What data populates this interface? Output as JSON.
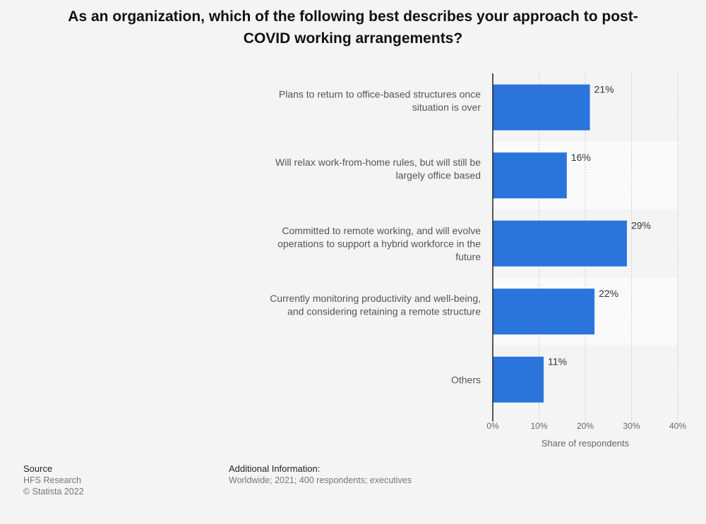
{
  "chart_data": {
    "type": "bar",
    "orientation": "horizontal",
    "title": "As an organization, which of the following best describes your approach to post-COVID working arrangements?",
    "categories": [
      "Plans to return to office-based structures once situation is over",
      "Will relax work-from-home rules, but will still be largely office based",
      "Committed to remote working, and will evolve operations to support a hybrid workforce in the future",
      "Currently monitoring productivity and well-being, and considering retaining a remote structure",
      "Others"
    ],
    "values": [
      21,
      16,
      29,
      22,
      11
    ],
    "value_labels": [
      "21%",
      "16%",
      "29%",
      "22%",
      "11%"
    ],
    "xlabel": "Share of respondents",
    "xlim": [
      0,
      40
    ],
    "xticks": [
      0,
      10,
      20,
      30,
      40
    ],
    "xtick_labels": [
      "0%",
      "10%",
      "20%",
      "30%",
      "40%"
    ],
    "grid": true,
    "bar_color": "#2a74db"
  },
  "footer": {
    "source_label": "Source",
    "source_lines": [
      "HFS Research",
      "© Statista 2022"
    ],
    "info_label": "Additional Information:",
    "info_text": "Worldwide; 2021; 400 respondents; executives"
  }
}
